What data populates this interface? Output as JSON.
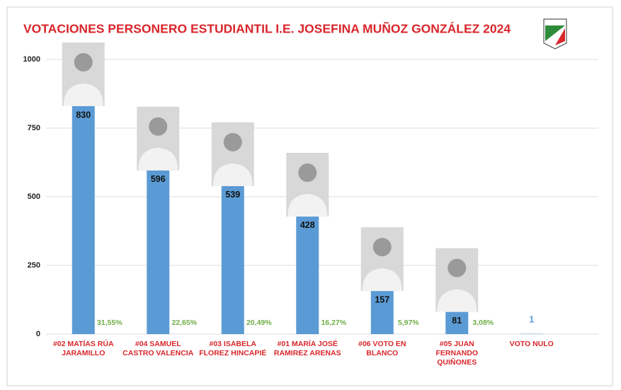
{
  "chart_data": {
    "type": "bar",
    "title": "VOTACIONES PERSONERO ESTUDIANTIL I.E. JOSEFINA MUÑOZ GONZÁLEZ 2024",
    "categories": [
      "#02 MATÍAS RÚA JARAMILLO",
      "#04 SAMUEL CASTRO VALENCIA",
      "#03 ISABELA FLOREZ HINCAPIÉ",
      "#01 MARÍA JOSÉ RAMIREZ ARENAS",
      "#06 VOTO EN BLANCO",
      "#05 JUAN FERNANDO QUIÑONES",
      "VOTO NULO"
    ],
    "values": [
      830,
      596,
      539,
      428,
      157,
      81,
      1
    ],
    "percent_labels": [
      "31,55%",
      "22,65%",
      "20,49%",
      "16,27%",
      "5,97%",
      "3,08%"
    ],
    "color": "#5b9bd5",
    "ylim": [
      0,
      1000
    ],
    "yticks": [
      0,
      250,
      500,
      750,
      1000
    ],
    "grid": true
  }
}
